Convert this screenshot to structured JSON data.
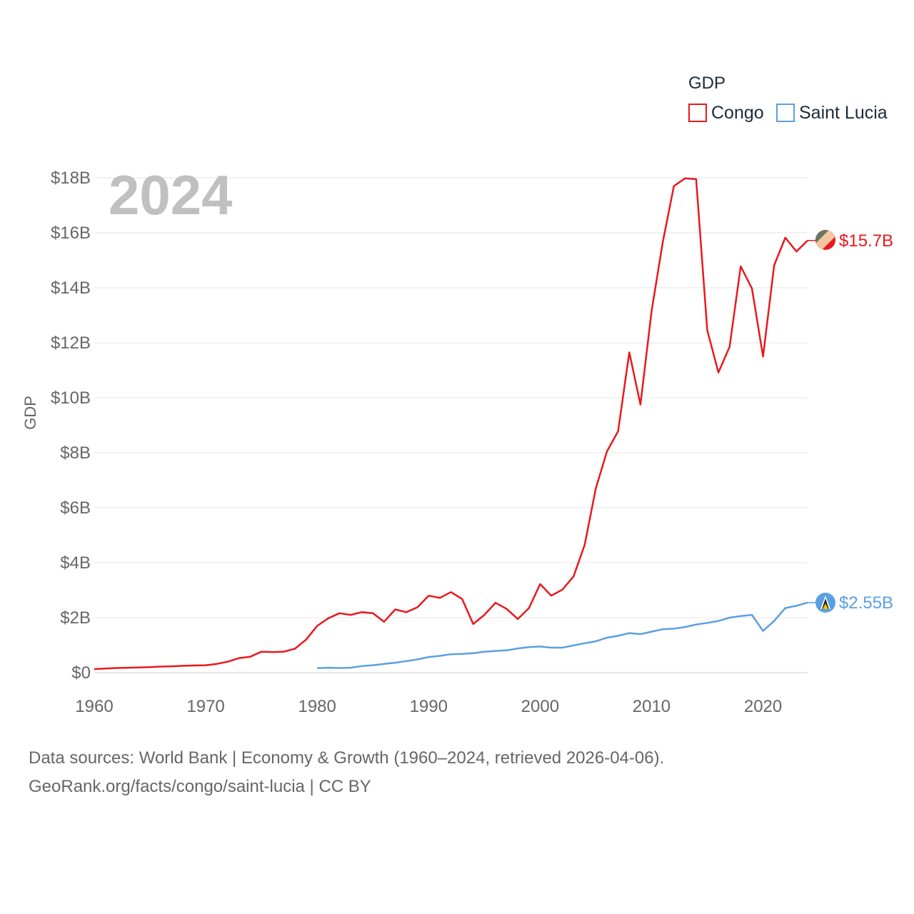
{
  "chart_data": {
    "type": "line",
    "title": "",
    "year_label": "2024",
    "xlabel": "",
    "ylabel": "GDP",
    "legend": {
      "title": "GDP",
      "position": "top-right"
    },
    "xlim": [
      1960,
      2024
    ],
    "ylim": [
      0,
      18
    ],
    "x_ticks": [
      1960,
      1970,
      1980,
      1990,
      2000,
      2010,
      2020
    ],
    "y_ticks": [
      {
        "value": 0,
        "label": "$0"
      },
      {
        "value": 2,
        "label": "$2B"
      },
      {
        "value": 4,
        "label": "$4B"
      },
      {
        "value": 6,
        "label": "$6B"
      },
      {
        "value": 8,
        "label": "$8B"
      },
      {
        "value": 10,
        "label": "$10B"
      },
      {
        "value": 12,
        "label": "$12B"
      },
      {
        "value": 14,
        "label": "$14B"
      },
      {
        "value": 16,
        "label": "$16B"
      },
      {
        "value": 18,
        "label": "$18B"
      }
    ],
    "grid": true,
    "units": "billions USD",
    "series": [
      {
        "name": "Congo",
        "color": "#e8191e",
        "end_label": "$15.7B",
        "icon": "congo-flag-icon",
        "x": [
          1960,
          1961,
          1962,
          1963,
          1964,
          1965,
          1966,
          1967,
          1968,
          1969,
          1970,
          1971,
          1972,
          1973,
          1974,
          1975,
          1976,
          1977,
          1978,
          1979,
          1980,
          1981,
          1982,
          1983,
          1984,
          1985,
          1986,
          1987,
          1988,
          1989,
          1990,
          1991,
          1992,
          1993,
          1994,
          1995,
          1996,
          1997,
          1998,
          1999,
          2000,
          2001,
          2002,
          2003,
          2004,
          2005,
          2006,
          2007,
          2008,
          2009,
          2010,
          2011,
          2012,
          2013,
          2014,
          2015,
          2016,
          2017,
          2018,
          2019,
          2020,
          2021,
          2022,
          2023,
          2024
        ],
        "values": [
          0.13,
          0.15,
          0.17,
          0.18,
          0.19,
          0.2,
          0.22,
          0.23,
          0.25,
          0.26,
          0.27,
          0.32,
          0.4,
          0.53,
          0.58,
          0.76,
          0.75,
          0.76,
          0.87,
          1.2,
          1.7,
          1.98,
          2.16,
          2.1,
          2.2,
          2.16,
          1.85,
          2.3,
          2.2,
          2.38,
          2.8,
          2.72,
          2.93,
          2.68,
          1.77,
          2.1,
          2.54,
          2.32,
          1.95,
          2.35,
          3.22,
          2.8,
          3.02,
          3.5,
          4.65,
          6.7,
          8.05,
          8.78,
          11.65,
          9.75,
          13.15,
          15.65,
          17.7,
          17.98,
          17.95,
          12.45,
          10.92,
          11.85,
          14.78,
          13.98,
          11.5,
          14.82,
          15.82,
          15.32,
          15.72
        ]
      },
      {
        "name": "Saint Lucia",
        "color": "#5aa0e0",
        "end_label": "$2.55B",
        "icon": "saint-lucia-flag-icon",
        "x": [
          1980,
          1981,
          1982,
          1983,
          1984,
          1985,
          1986,
          1987,
          1988,
          1989,
          1990,
          1991,
          1992,
          1993,
          1994,
          1995,
          1996,
          1997,
          1998,
          1999,
          2000,
          2001,
          2002,
          2003,
          2004,
          2005,
          2006,
          2007,
          2008,
          2009,
          2010,
          2011,
          2012,
          2013,
          2014,
          2015,
          2016,
          2017,
          2018,
          2019,
          2020,
          2021,
          2022,
          2023,
          2024
        ],
        "values": [
          0.16,
          0.18,
          0.17,
          0.18,
          0.24,
          0.27,
          0.32,
          0.36,
          0.42,
          0.48,
          0.57,
          0.61,
          0.67,
          0.68,
          0.71,
          0.76,
          0.79,
          0.81,
          0.88,
          0.93,
          0.95,
          0.91,
          0.91,
          0.99,
          1.07,
          1.14,
          1.27,
          1.34,
          1.44,
          1.4,
          1.49,
          1.58,
          1.6,
          1.66,
          1.75,
          1.81,
          1.88,
          2.0,
          2.06,
          2.1,
          1.52,
          1.88,
          2.35,
          2.43,
          2.55
        ]
      }
    ]
  },
  "footer": {
    "line1": "Data sources: World Bank | Economy & Growth (1960–2024, retrieved 2026-04-06).",
    "line2": "GeoRank.org/facts/congo/saint-lucia | CC BY"
  }
}
